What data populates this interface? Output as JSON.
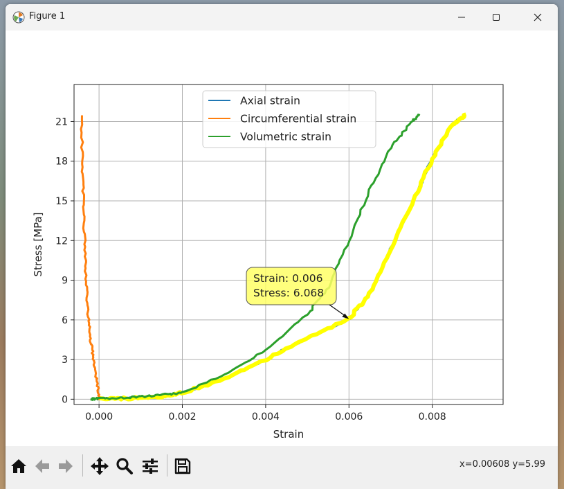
{
  "window": {
    "title": "Figure 1"
  },
  "toolbar": {
    "buttons": [
      {
        "name": "home-button",
        "icon": "home-icon"
      },
      {
        "name": "back-button",
        "icon": "arrow-left-icon"
      },
      {
        "name": "forward-button",
        "icon": "arrow-right-icon"
      },
      {
        "name": "pan-button",
        "icon": "move-icon"
      },
      {
        "name": "zoom-button",
        "icon": "magnifier-icon"
      },
      {
        "name": "configure-subplots-button",
        "icon": "sliders-icon"
      },
      {
        "name": "save-button",
        "icon": "floppy-disk-icon"
      }
    ],
    "coords": "x=0.00608 y=5.99"
  },
  "chart_data": {
    "type": "line",
    "xlabel": "Strain",
    "ylabel": "Stress [MPa]",
    "xlim": [
      -0.0006,
      0.0097
    ],
    "ylim": [
      -0.4,
      23.8
    ],
    "xticks": [
      "0.000",
      "0.002",
      "0.004",
      "0.006",
      "0.008"
    ],
    "yticks": [
      "0",
      "3",
      "6",
      "9",
      "12",
      "15",
      "18",
      "21"
    ],
    "grid": true,
    "legend_position": "upper center",
    "series": [
      {
        "name": "Axial strain",
        "color": "#1f77b4",
        "x": [
          0,
          0.0005,
          0.001,
          0.0015,
          0.002,
          0.003,
          0.004,
          0.005,
          0.006,
          0.0065,
          0.007,
          0.0075,
          0.008,
          0.0085,
          0.0088
        ],
        "y": [
          0,
          0.05,
          0.1,
          0.2,
          0.5,
          1.5,
          3.0,
          4.6,
          6.07,
          8.0,
          11.3,
          14.7,
          18.2,
          20.8,
          21.5
        ]
      },
      {
        "name": "Circumferential strain",
        "color": "#ff7f0e",
        "x": [
          0,
          -3e-05,
          -8e-05,
          -0.00013,
          -0.00018,
          -0.00022,
          -0.00026,
          -0.0003,
          -0.00033,
          -0.00036,
          -0.00038,
          -0.0004,
          -0.00042
        ],
        "y": [
          0,
          1,
          2,
          3,
          4,
          5,
          6.5,
          8.5,
          10.5,
          13,
          15.5,
          18,
          21.5
        ]
      },
      {
        "name": "Volumetric strain",
        "color": "#2ca02c",
        "x": [
          -0.0002,
          0,
          0.0005,
          0.001,
          0.0015,
          0.002,
          0.003,
          0.004,
          0.005,
          0.0055,
          0.006,
          0.0065,
          0.007,
          0.0075,
          0.0077
        ],
        "y": [
          0,
          0.05,
          0.1,
          0.2,
          0.3,
          0.5,
          1.8,
          3.7,
          6.4,
          8.5,
          12,
          15.8,
          19.0,
          21.0,
          21.5
        ]
      }
    ],
    "highlight_series": {
      "color": "#ffff00",
      "of": "Axial strain"
    },
    "annotation": {
      "lines": [
        "Strain: 0.006",
        "Stress: 6.068"
      ],
      "x": 0.006,
      "y": 6.068,
      "fill": "#ffff66"
    }
  }
}
